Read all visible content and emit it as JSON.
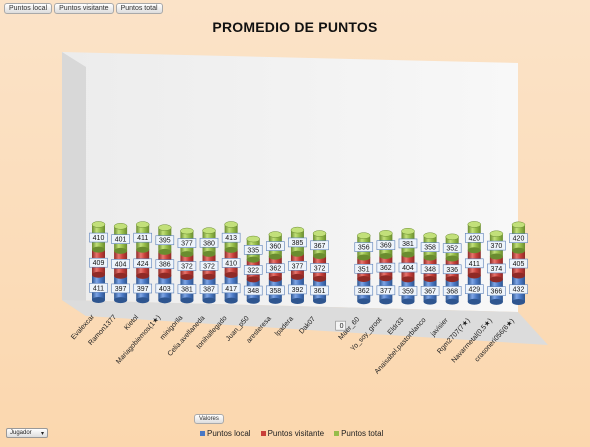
{
  "buttons": {
    "local": "Puntos local",
    "visitante": "Puntos visitante",
    "total": "Puntos total"
  },
  "valores_label": "Valores",
  "jugador_label": "Jugador",
  "colors": {
    "local": "#4a78c4",
    "visitante": "#c8403a",
    "total": "#96bd4a"
  },
  "chart_data": {
    "type": "bar",
    "stacked": true,
    "title": "PROMEDIO DE PUNTOS",
    "categories": [
      "Evalexcar",
      "Ramon1377",
      "Kietol",
      "Mariagobiemos(1★)",
      "minigorila",
      "Celia.avellaneda",
      "tonihallegado",
      "Juan_p50",
      "aresteresa",
      "lpadera",
      "Dak07",
      "Ramon767(0,5★)",
      "Maer_60",
      "Yo_soy_groot",
      "Eldr33",
      "Anaisabel.pastorblanco",
      "javisier",
      "Rgm2707(7★)",
      "Navarrnetal(0,5★)",
      "crasoneri056(6★)"
    ],
    "series": [
      {
        "name": "Puntos local",
        "values": [
          411,
          397,
          397,
          403,
          381,
          387,
          417,
          348,
          358,
          392,
          361,
          0,
          362,
          377,
          359,
          367,
          368,
          429,
          366,
          432
        ]
      },
      {
        "name": "Puntos visitante",
        "values": [
          409,
          404,
          424,
          386,
          372,
          372,
          410,
          322,
          362,
          377,
          372,
          0,
          351,
          362,
          404,
          348,
          336,
          411,
          374,
          405
        ]
      },
      {
        "name": "Puntos total",
        "values": [
          410,
          401,
          411,
          395,
          377,
          380,
          413,
          335,
          360,
          385,
          367,
          0,
          356,
          369,
          381,
          358,
          352,
          420,
          370,
          420
        ]
      }
    ],
    "zero_label": "0",
    "legend_position": "bottom"
  }
}
